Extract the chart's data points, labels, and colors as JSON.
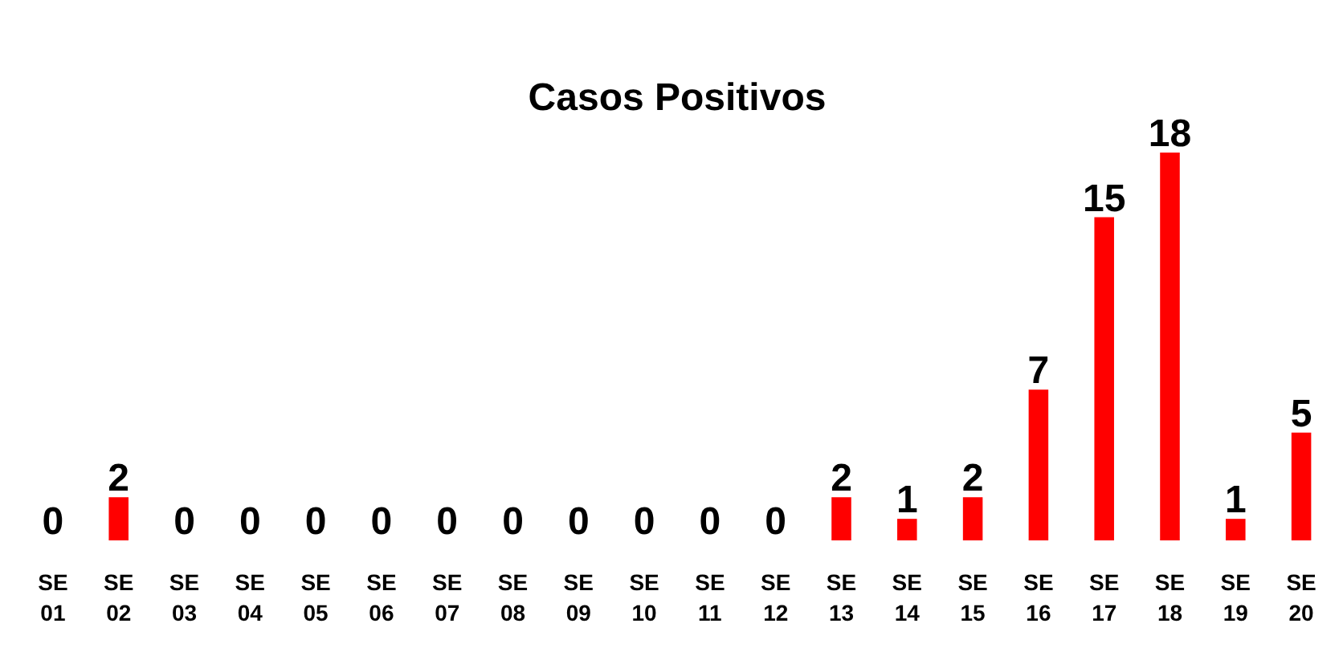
{
  "chart_data": {
    "type": "bar",
    "title": "Casos Positivos",
    "categories": [
      "SE 01",
      "SE 02",
      "SE 03",
      "SE 04",
      "SE 05",
      "SE 06",
      "SE 07",
      "SE 08",
      "SE 09",
      "SE 10",
      "SE 11",
      "SE 12",
      "SE 13",
      "SE 14",
      "SE 15",
      "SE 16",
      "SE 17",
      "SE 18",
      "SE 19",
      "SE 20"
    ],
    "values": [
      0,
      2,
      0,
      0,
      0,
      0,
      0,
      0,
      0,
      0,
      0,
      0,
      2,
      1,
      2,
      7,
      15,
      18,
      1,
      5
    ],
    "color": "#ff0000",
    "data_labels": true,
    "grid": false
  }
}
